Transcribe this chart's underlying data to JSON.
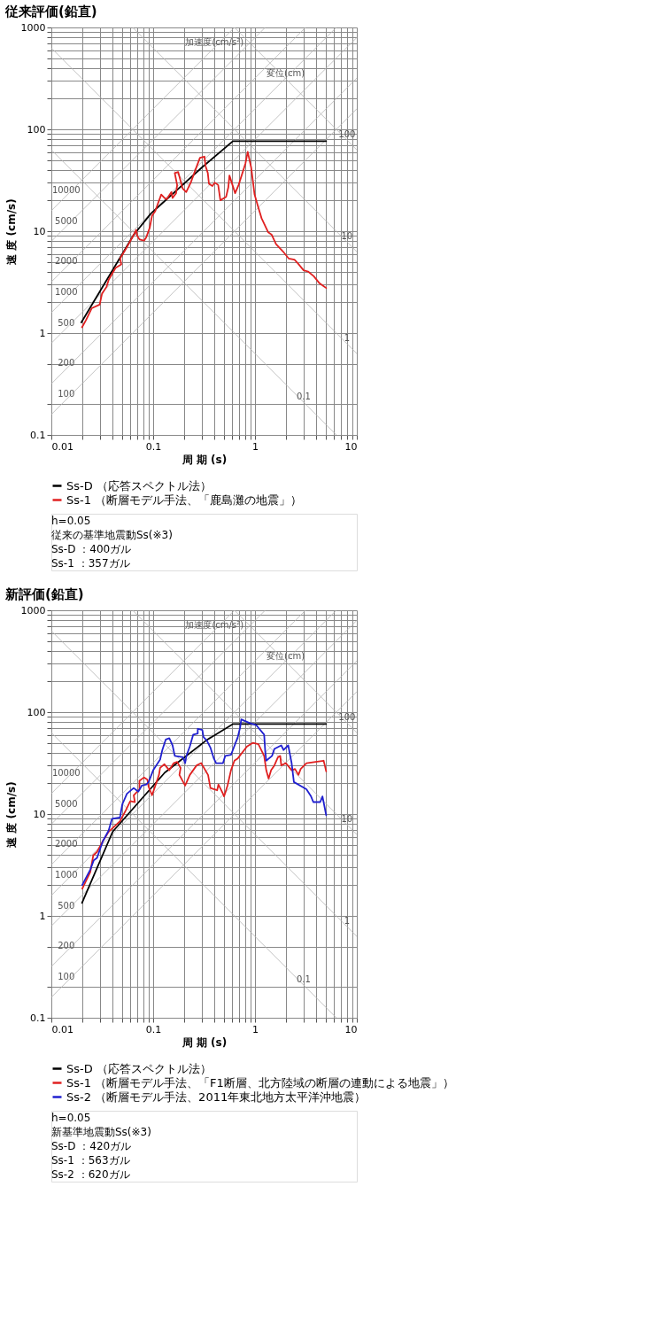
{
  "chart_data": [
    {
      "type": "line",
      "title": "従来評価(鉛直)",
      "xlabel": "周 期 (s)",
      "ylabel": "速 度 (cm/s)",
      "log": "xy",
      "grid": true,
      "legend": "bottom",
      "xlim": [
        0.01,
        10
      ],
      "ylim": [
        0.1,
        1000
      ],
      "xticks": [
        0.01,
        {
          "value": 0.02,
          "label": null
        },
        {
          "value": 0.03,
          "label": null
        },
        {
          "value": 0.04,
          "label": null
        },
        {
          "value": 0.05,
          "label": null
        },
        {
          "value": 0.06,
          "label": null
        },
        {
          "value": 0.07,
          "label": null
        },
        {
          "value": 0.08,
          "label": null
        },
        {
          "value": 0.09,
          "label": null
        },
        0.1,
        {
          "value": 0.2,
          "label": null
        },
        {
          "value": 0.3,
          "label": null
        },
        {
          "value": 0.4,
          "label": null
        },
        {
          "value": 0.5,
          "label": null
        },
        {
          "value": 0.6,
          "label": null
        },
        {
          "value": 0.7,
          "label": null
        },
        {
          "value": 0.8,
          "label": null
        },
        {
          "value": 0.9,
          "label": null
        },
        1,
        {
          "value": 2,
          "label": null
        },
        {
          "value": 3,
          "label": null
        },
        {
          "value": 4,
          "label": null
        },
        {
          "value": 5,
          "label": null
        },
        {
          "value": 6,
          "label": null
        },
        {
          "value": 7,
          "label": null
        },
        {
          "value": 8,
          "label": null
        },
        {
          "value": 9,
          "label": null
        },
        10
      ],
      "yticks": [
        0.1,
        {
          "value": 0.2,
          "label": null
        },
        {
          "value": 0.5,
          "label": null
        },
        1,
        {
          "value": 2,
          "label": null
        },
        {
          "value": 3,
          "label": null
        },
        {
          "value": 4,
          "label": null
        },
        {
          "value": 5,
          "label": null
        },
        {
          "value": 6,
          "label": null
        },
        {
          "value": 7,
          "label": null
        },
        {
          "value": 8,
          "label": null
        },
        {
          "value": 9,
          "label": null
        },
        10,
        {
          "value": 20,
          "label": null
        },
        {
          "value": 30,
          "label": null
        },
        {
          "value": 40,
          "label": null
        },
        {
          "value": 50,
          "label": null
        },
        {
          "value": 60,
          "label": null
        },
        {
          "value": 70,
          "label": null
        },
        {
          "value": 80,
          "label": null
        },
        {
          "value": 90,
          "label": null
        },
        100,
        {
          "value": 200,
          "label": null
        },
        {
          "value": 300,
          "label": null
        },
        {
          "value": 400,
          "label": null
        },
        {
          "value": 500,
          "label": null
        },
        {
          "value": 600,
          "label": null
        },
        {
          "value": 700,
          "label": null
        },
        {
          "value": 800,
          "label": null
        },
        {
          "value": 900,
          "label": null
        },
        1000
      ],
      "series": [
        {
          "type": "line",
          "color": "#b4b4b4",
          "x": [
            0.628,
            10
          ],
          "values": [
            1000,
            62.8
          ]
        },
        {
          "type": "line",
          "color": "#b4b4b4",
          "x": [
            0.0628,
            10
          ],
          "values": [
            1000,
            6.28
          ]
        },
        {
          "type": "line",
          "color": "#b4b4b4",
          "x": [
            0.01,
            10
          ],
          "values": [
            628,
            0.628
          ]
        },
        {
          "type": "line",
          "color": "#b4b4b4",
          "x": [
            0.01,
            6.28
          ],
          "values": [
            62.8,
            0.1
          ]
        },
        {
          "type": "line",
          "color": "#b4b4b4",
          "x": [
            0.01,
            0.628
          ],
          "values": [
            15.9,
            1000
          ]
        },
        {
          "type": "line",
          "color": "#b4b4b4",
          "x": [
            0.01,
            1.26
          ],
          "values": [
            7.96,
            1000
          ]
        },
        {
          "type": "line",
          "color": "#b4b4b4",
          "x": [
            0.01,
            3.14
          ],
          "values": [
            3.18,
            1000
          ]
        },
        {
          "type": "line",
          "color": "#b4b4b4",
          "x": [
            0.01,
            6.28
          ],
          "values": [
            1.59,
            1000
          ]
        },
        {
          "type": "line",
          "color": "#b4b4b4",
          "x": [
            0.01,
            10
          ],
          "values": [
            0.796,
            796
          ]
        },
        {
          "type": "line",
          "color": "#b4b4b4",
          "x": [
            0.01,
            10
          ],
          "values": [
            0.318,
            318
          ]
        },
        {
          "type": "line",
          "color": "#b4b4b4",
          "x": [
            0.01,
            10
          ],
          "values": [
            0.159,
            159
          ]
        },
        {
          "name": "Ss-D （応答スペクトル法）",
          "color": "#000000",
          "x": [
            5.0,
            0.607,
            0.303,
            0.095,
            0.0645,
            0.0197
          ],
          "values": [
            76.6,
            76.6,
            42.5,
            14.9,
            9.23,
            1.27
          ]
        },
        {
          "name": "Ss-1 （断層モデル手法、「鹿島灘の地震」）",
          "color": "#e02020",
          "x": [
            0.02,
            0.0219,
            0.0249,
            0.0298,
            0.0314,
            0.0348,
            0.0366,
            0.0427,
            0.0486,
            0.0474,
            0.0539,
            0.0645,
            0.068,
            0.0697,
            0.0734,
            0.0814,
            0.0857,
            0.0925,
            0.0975,
            0.105,
            0.111,
            0.12,
            0.129,
            0.136,
            0.143,
            0.151,
            0.155,
            0.168,
            0.172,
            0.163,
            0.176,
            0.195,
            0.211,
            0.234,
            0.253,
            0.288,
            0.319,
            0.327,
            0.344,
            0.353,
            0.382,
            0.402,
            0.435,
            0.457,
            0.52,
            0.547,
            0.561,
            0.638,
            0.69,
            0.805,
            0.848,
            0.916,
            0.964,
            0.99,
            1.07,
            1.16,
            1.35,
            1.46,
            1.61,
            1.88,
            2.14,
            2.44,
            2.63,
            3.0,
            3.32,
            3.78,
            4.3,
            4.64,
            5.0
          ],
          "values": [
            1.14,
            1.34,
            1.75,
            1.9,
            2.42,
            2.84,
            3.34,
            4.36,
            4.72,
            5.4,
            6.69,
            9.23,
            10.3,
            8.98,
            8.29,
            8.07,
            8.75,
            10.8,
            14.2,
            15.8,
            18.5,
            22.9,
            21.2,
            20.6,
            22.3,
            24.2,
            21.2,
            23.6,
            28.4,
            37.2,
            38.1,
            26.2,
            24.2,
            30.0,
            37.2,
            52.6,
            54.0,
            43.6,
            37.2,
            29.2,
            27.7,
            30.0,
            28.4,
            20.1,
            21.7,
            26.9,
            35.2,
            23.6,
            28.4,
            46.0,
            60.1,
            42.5,
            28.4,
            22.9,
            17.5,
            13.4,
            9.73,
            9.23,
            7.45,
            6.34,
            5.4,
            5.26,
            4.85,
            4.13,
            4.02,
            3.61,
            3.08,
            2.92,
            2.77
          ]
        }
      ],
      "annotations": [
        "h=0.05",
        "従来の基準地震動Ss(※3)",
        "Ss-D ：400ガル",
        "Ss-1 ：357ガル",
        {
          "text": "変位(cm)",
          "x": 2,
          "y": 314
        },
        {
          "text": "加速度(cm/s²)",
          "x": 0.4,
          "y": 637
        },
        {
          "text": "100",
          "x": 8,
          "y": 78.5
        },
        {
          "text": "10",
          "x": 8,
          "y": 7.85
        },
        {
          "text": "1",
          "x": 8,
          "y": 0.785
        },
        {
          "text": "0.1",
          "x": 3,
          "y": 0.209
        },
        {
          "text": "10000",
          "x": 0.014,
          "y": 22.3
        },
        {
          "text": "5000",
          "x": 0.014,
          "y": 11.1
        },
        {
          "text": "2000",
          "x": 0.014,
          "y": 4.46
        },
        {
          "text": "1000",
          "x": 0.014,
          "y": 2.23
        },
        {
          "text": "500",
          "x": 0.014,
          "y": 1.11
        },
        {
          "text": "200",
          "x": 0.014,
          "y": 0.446
        },
        {
          "text": "100",
          "x": 0.014,
          "y": 0.223
        }
      ]
    },
    {
      "type": "line",
      "title": "新評価(鉛直)",
      "xlabel": "周 期 (s)",
      "ylabel": "速 度 (cm/s)",
      "log": "xy",
      "grid": true,
      "legend": "bottom",
      "xlim": [
        0.01,
        10
      ],
      "ylim": [
        0.1,
        1000
      ],
      "xticks": [
        0.01,
        {
          "value": 0.02,
          "label": null
        },
        {
          "value": 0.03,
          "label": null
        },
        {
          "value": 0.04,
          "label": null
        },
        {
          "value": 0.05,
          "label": null
        },
        {
          "value": 0.06,
          "label": null
        },
        {
          "value": 0.07,
          "label": null
        },
        {
          "value": 0.08,
          "label": null
        },
        {
          "value": 0.09,
          "label": null
        },
        0.1,
        {
          "value": 0.2,
          "label": null
        },
        {
          "value": 0.3,
          "label": null
        },
        {
          "value": 0.4,
          "label": null
        },
        {
          "value": 0.5,
          "label": null
        },
        {
          "value": 0.6,
          "label": null
        },
        {
          "value": 0.7,
          "label": null
        },
        {
          "value": 0.8,
          "label": null
        },
        {
          "value": 0.9,
          "label": null
        },
        1,
        {
          "value": 2,
          "label": null
        },
        {
          "value": 3,
          "label": null
        },
        {
          "value": 4,
          "label": null
        },
        {
          "value": 5,
          "label": null
        },
        {
          "value": 6,
          "label": null
        },
        {
          "value": 7,
          "label": null
        },
        {
          "value": 8,
          "label": null
        },
        {
          "value": 9,
          "label": null
        },
        10
      ],
      "yticks": [
        0.1,
        {
          "value": 0.2,
          "label": null
        },
        {
          "value": 0.5,
          "label": null
        },
        1,
        {
          "value": 2,
          "label": null
        },
        {
          "value": 3,
          "label": null
        },
        {
          "value": 4,
          "label": null
        },
        {
          "value": 5,
          "label": null
        },
        {
          "value": 6,
          "label": null
        },
        {
          "value": 7,
          "label": null
        },
        {
          "value": 8,
          "label": null
        },
        {
          "value": 9,
          "label": null
        },
        10,
        {
          "value": 20,
          "label": null
        },
        {
          "value": 30,
          "label": null
        },
        {
          "value": 40,
          "label": null
        },
        {
          "value": 50,
          "label": null
        },
        {
          "value": 60,
          "label": null
        },
        {
          "value": 70,
          "label": null
        },
        {
          "value": 80,
          "label": null
        },
        {
          "value": 90,
          "label": null
        },
        100,
        {
          "value": 200,
          "label": null
        },
        {
          "value": 300,
          "label": null
        },
        {
          "value": 400,
          "label": null
        },
        {
          "value": 500,
          "label": null
        },
        {
          "value": 600,
          "label": null
        },
        {
          "value": 700,
          "label": null
        },
        {
          "value": 800,
          "label": null
        },
        {
          "value": 900,
          "label": null
        },
        1000
      ],
      "series": [
        {
          "type": "line",
          "color": "#b4b4b4",
          "x": [
            0.628,
            10
          ],
          "values": [
            1000,
            62.8
          ]
        },
        {
          "type": "line",
          "color": "#b4b4b4",
          "x": [
            0.0628,
            10
          ],
          "values": [
            1000,
            6.28
          ]
        },
        {
          "type": "line",
          "color": "#b4b4b4",
          "x": [
            0.01,
            10
          ],
          "values": [
            628,
            0.628
          ]
        },
        {
          "type": "line",
          "color": "#b4b4b4",
          "x": [
            0.01,
            6.28
          ],
          "values": [
            62.8,
            0.1
          ]
        },
        {
          "type": "line",
          "color": "#b4b4b4",
          "x": [
            0.01,
            0.628
          ],
          "values": [
            15.9,
            1000
          ]
        },
        {
          "type": "line",
          "color": "#b4b4b4",
          "x": [
            0.01,
            1.26
          ],
          "values": [
            7.96,
            1000
          ]
        },
        {
          "type": "line",
          "color": "#b4b4b4",
          "x": [
            0.01,
            3.14
          ],
          "values": [
            3.18,
            1000
          ]
        },
        {
          "type": "line",
          "color": "#b4b4b4",
          "x": [
            0.01,
            6.28
          ],
          "values": [
            1.59,
            1000
          ]
        },
        {
          "type": "line",
          "color": "#b4b4b4",
          "x": [
            0.01,
            10
          ],
          "values": [
            0.796,
            796
          ]
        },
        {
          "type": "line",
          "color": "#b4b4b4",
          "x": [
            0.01,
            10
          ],
          "values": [
            0.318,
            318
          ]
        },
        {
          "type": "line",
          "color": "#b4b4b4",
          "x": [
            0.01,
            10
          ],
          "values": [
            0.159,
            159
          ]
        },
        {
          "name": "Ss-D （応答スペクトル法）",
          "color": "#000000",
          "x": [
            5.0,
            0.61,
            0.33,
            0.13,
            0.04,
            0.02
          ],
          "values": [
            76.6,
            76.6,
            52.6,
            25.5,
            6.7,
            1.34
          ]
        },
        {
          "name": "Ss-1 （断層モデル手法、「F1断層、北方陸域の断層の連動による地震」）",
          "color": "#e02020",
          "x": [
            0.0201,
            0.0241,
            0.0258,
            0.0281,
            0.032,
            0.0365,
            0.0472,
            0.0537,
            0.0596,
            0.0661,
            0.0644,
            0.0733,
            0.0733,
            0.0813,
            0.0879,
            0.0902,
            0.0975,
            0.108,
            0.114,
            0.117,
            0.129,
            0.144,
            0.159,
            0.172,
            0.186,
            0.181,
            0.206,
            0.229,
            0.267,
            0.296,
            0.346,
            0.365,
            0.425,
            0.437,
            0.485,
            0.497,
            0.537,
            0.581,
            0.628,
            0.678,
            0.834,
            0.95,
            1.08,
            1.23,
            1.29,
            1.36,
            1.44,
            1.55,
            1.68,
            1.77,
            1.81,
            2.01,
            2.29,
            2.47,
            2.67,
            2.81,
            3.2,
            3.94,
            4.72,
            4.85,
            5.0
          ],
          "values": [
            1.85,
            2.69,
            3.92,
            4.25,
            5.4,
            6.69,
            8.51,
            10.8,
            13.4,
            13.1,
            15.3,
            17.5,
            21.2,
            22.9,
            21.7,
            18.5,
            15.3,
            20.6,
            24.2,
            28.4,
            30.8,
            26.9,
            31.6,
            32.5,
            28.4,
            24.2,
            19.0,
            24.2,
            30.0,
            31.6,
            24.2,
            18.0,
            17.1,
            19.5,
            15.8,
            14.9,
            19.0,
            26.9,
            33.4,
            35.2,
            46.0,
            49.9,
            48.5,
            37.2,
            26.9,
            22.3,
            26.9,
            30.0,
            36.1,
            37.2,
            30.0,
            31.6,
            26.9,
            27.7,
            24.2,
            27.7,
            31.6,
            32.5,
            33.4,
            30.0,
            26.2
          ]
        },
        {
          "name": "Ss-2 （断層モデル手法、2011年東北地方太平洋沖地震）",
          "color": "#2020d0",
          "x": [
            0.0201,
            0.0241,
            0.0261,
            0.0281,
            0.032,
            0.0365,
            0.0394,
            0.0472,
            0.0497,
            0.0552,
            0.0644,
            0.0714,
            0.0773,
            0.0857,
            0.0902,
            0.1,
            0.117,
            0.123,
            0.133,
            0.144,
            0.155,
            0.163,
            0.196,
            0.206,
            0.212,
            0.229,
            0.247,
            0.274,
            0.274,
            0.304,
            0.312,
            0.337,
            0.365,
            0.394,
            0.415,
            0.485,
            0.51,
            0.581,
            0.612,
            0.678,
            0.714,
            0.733,
            0.879,
            1.03,
            1.23,
            1.26,
            1.29,
            1.47,
            1.55,
            1.81,
            1.91,
            2.12,
            2.29,
            2.41,
            3.2,
            3.55,
            3.74,
            4.37,
            4.6,
            4.85,
            5.0
          ],
          "values": [
            2.01,
            2.84,
            3.52,
            3.71,
            5.4,
            6.87,
            8.98,
            9.23,
            12.4,
            15.8,
            18.0,
            16.6,
            19.0,
            19.5,
            20.6,
            26.9,
            34.3,
            42.5,
            54.0,
            55.5,
            47.2,
            37.2,
            36.1,
            31.6,
            37.2,
            46.0,
            60.1,
            61.8,
            68.7,
            66.9,
            57.0,
            52.6,
            44.8,
            35.2,
            31.6,
            31.6,
            37.2,
            38.1,
            43.6,
            57.0,
            70.6,
            85.1,
            78.5,
            74.5,
            60.1,
            41.3,
            33.4,
            37.2,
            43.6,
            47.2,
            42.5,
            47.2,
            31.6,
            20.6,
            17.5,
            14.9,
            13.1,
            13.1,
            14.9,
            11.4,
            9.73
          ]
        }
      ],
      "annotations": [
        "h=0.05",
        "新基準地震動Ss(※3)",
        "Ss-D ：420ガル",
        "Ss-1 ：563ガル",
        "Ss-2 ：620ガル",
        {
          "text": "変位(cm)",
          "x": 2,
          "y": 314
        },
        {
          "text": "加速度(cm/s²)",
          "x": 0.4,
          "y": 637
        },
        {
          "text": "100",
          "x": 8,
          "y": 78.5
        },
        {
          "text": "10",
          "x": 8,
          "y": 7.85
        },
        {
          "text": "1",
          "x": 8,
          "y": 0.785
        },
        {
          "text": "0.1",
          "x": 3,
          "y": 0.209
        },
        {
          "text": "10000",
          "x": 0.014,
          "y": 22.3
        },
        {
          "text": "5000",
          "x": 0.014,
          "y": 11.1
        },
        {
          "text": "2000",
          "x": 0.014,
          "y": 4.46
        },
        {
          "text": "1000",
          "x": 0.014,
          "y": 2.23
        },
        {
          "text": "500",
          "x": 0.014,
          "y": 1.11
        },
        {
          "text": "200",
          "x": 0.014,
          "y": 0.446
        },
        {
          "text": "100",
          "x": 0.014,
          "y": 0.223
        }
      ]
    }
  ]
}
